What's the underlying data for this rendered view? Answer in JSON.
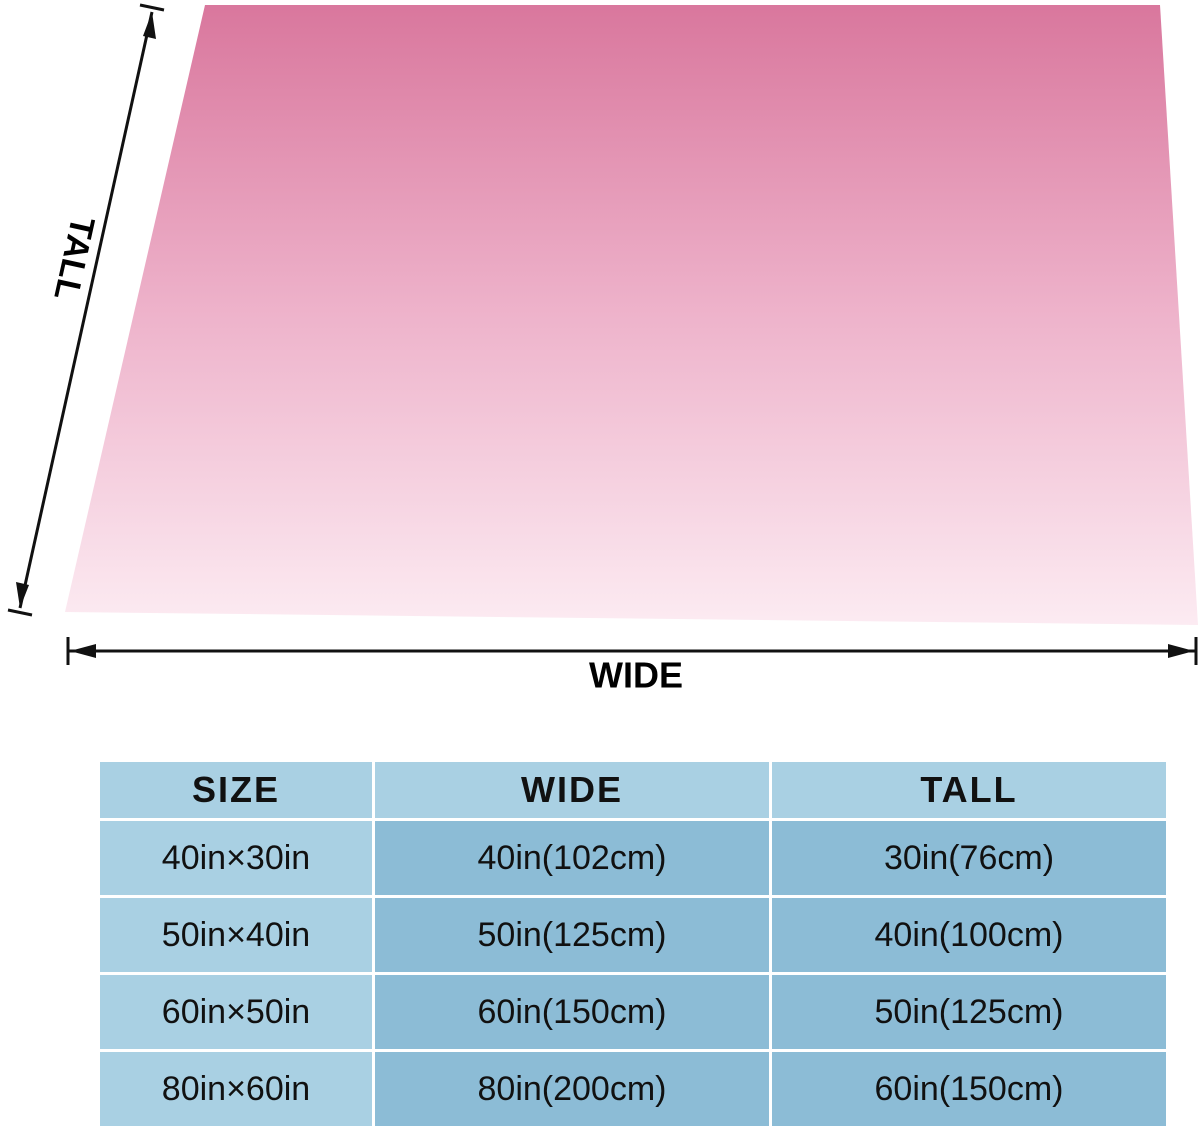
{
  "diagram": {
    "tall_label": "TALL",
    "wide_label": "WIDE"
  },
  "table": {
    "header": [
      "SIZE",
      "WIDE",
      "TALL"
    ],
    "rows": [
      [
        "40in×30in",
        "40in(102cm)",
        "30in(76cm)"
      ],
      [
        "50in×40in",
        "50in(125cm)",
        "40in(100cm)"
      ],
      [
        "60in×50in",
        "60in(150cm)",
        "50in(125cm)"
      ],
      [
        "80in×60in",
        "80in(200cm)",
        "60in(150cm)"
      ]
    ]
  }
}
